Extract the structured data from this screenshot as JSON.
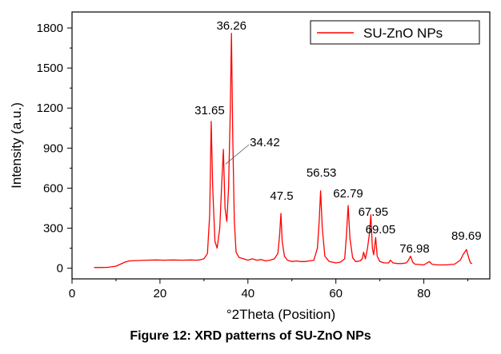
{
  "caption": "Figure 12: XRD patterns of SU-ZnO NPs",
  "chart_data": {
    "type": "line",
    "xlabel": "°2Theta (Position)",
    "ylabel": "Intensity (a.u.)",
    "xlim": [
      0,
      95
    ],
    "ylim": [
      -80,
      1920
    ],
    "xticks": [
      0,
      20,
      40,
      60,
      80
    ],
    "yticks": [
      0,
      300,
      600,
      900,
      1200,
      1500,
      1800
    ],
    "legend": {
      "position": "top-right",
      "entries": [
        "SU-ZnO NPs"
      ]
    },
    "series": [
      {
        "name": "SU-ZnO NPs",
        "color": "#ff0000",
        "x": [
          5,
          8,
          10,
          11,
          12,
          13,
          15,
          17,
          19,
          21,
          23,
          25,
          27,
          28,
          29,
          30,
          30.8,
          31.3,
          31.65,
          32.0,
          32.5,
          33.0,
          33.6,
          34.0,
          34.42,
          34.8,
          35.2,
          35.6,
          36.0,
          36.26,
          36.55,
          36.9,
          37.3,
          38,
          39,
          40,
          41,
          42,
          43,
          44,
          45,
          46,
          46.8,
          47.2,
          47.5,
          47.8,
          48.3,
          49,
          50,
          51,
          52,
          53,
          54,
          55,
          55.8,
          56.2,
          56.53,
          56.9,
          57.5,
          58.5,
          60,
          61,
          62,
          62.4,
          62.79,
          63.2,
          63.8,
          64.5,
          65.5,
          66.0,
          66.3,
          66.7,
          67.2,
          67.6,
          67.95,
          68.3,
          68.6,
          69.05,
          69.4,
          70,
          71,
          72,
          72.4,
          73,
          74,
          75,
          76,
          76.5,
          76.98,
          77.5,
          78,
          80,
          81.3,
          81.8,
          83,
          85,
          87,
          88.3,
          88.9,
          89.69,
          90.2,
          90.6,
          91
        ],
        "values": [
          5,
          6,
          15,
          30,
          45,
          55,
          58,
          60,
          62,
          60,
          62,
          60,
          62,
          60,
          62,
          70,
          110,
          400,
          1100,
          600,
          200,
          150,
          300,
          600,
          890,
          450,
          350,
          600,
          1200,
          1760,
          1000,
          350,
          120,
          80,
          70,
          60,
          70,
          60,
          65,
          55,
          60,
          70,
          110,
          250,
          410,
          200,
          90,
          60,
          50,
          55,
          50,
          50,
          55,
          60,
          150,
          350,
          580,
          300,
          90,
          50,
          40,
          45,
          70,
          250,
          470,
          220,
          80,
          50,
          55,
          70,
          120,
          70,
          150,
          250,
          400,
          150,
          100,
          230,
          90,
          50,
          40,
          40,
          60,
          40,
          35,
          35,
          40,
          60,
          90,
          45,
          30,
          25,
          50,
          30,
          25,
          25,
          30,
          60,
          100,
          140,
          80,
          40,
          35
        ]
      }
    ],
    "annotations": [
      {
        "text": "36.26",
        "x": 36.26
      },
      {
        "text": "31.65",
        "x": 31.65
      },
      {
        "text": "34.42",
        "x": 34.42
      },
      {
        "text": "47.5",
        "x": 47.5
      },
      {
        "text": "56.53",
        "x": 56.53
      },
      {
        "text": "62.79",
        "x": 62.79
      },
      {
        "text": "67.95",
        "x": 67.95
      },
      {
        "text": "69.05",
        "x": 69.05
      },
      {
        "text": "76.98",
        "x": 76.98
      },
      {
        "text": "89.69",
        "x": 89.69
      }
    ]
  }
}
